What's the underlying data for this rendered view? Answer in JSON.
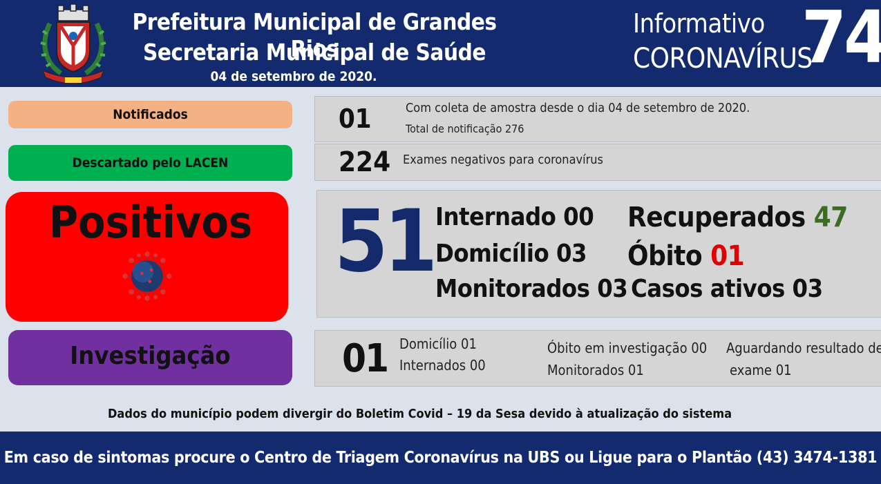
{
  "header": {
    "title_line1": "Prefeitura Municipal de Grandes Rios",
    "title_line2": "Secretaria Municipal de Saúde",
    "date": "04 de setembro  de 2020.",
    "info_line1": "Informativo",
    "info_line2": "CORONAVÍRUS",
    "bulletin_number": "74"
  },
  "colors": {
    "navy": "#132a6e",
    "notificados": "#f4b183",
    "descartado": "#00b050",
    "positivos": "#ff0000",
    "investigacao": "#7030a0",
    "recuperados_value": "#3b6e22",
    "obito_value": "#e00000",
    "big_number": "#152a6a"
  },
  "notificados": {
    "label": "Notificados",
    "value": "01",
    "line1": "Com coleta  de amostra  desde o dia 04 de setembro de 2020.",
    "line2": "Total de notificação  276"
  },
  "descartado": {
    "label": "Descartado  pelo LACEN",
    "value": "224",
    "text": "Exames negativos  para coronavírus"
  },
  "positivos": {
    "label": "Positivos",
    "icon": "coronavirus-icon",
    "value": "51",
    "internado": "Internado 00",
    "domicilio": "Domicílio 03",
    "monitorados": "Monitorados 03",
    "recuperados_label": "Recuperados",
    "recuperados_value": "47",
    "obito_label": "Óbito",
    "obito_value": "01",
    "casos_ativos": "Casos ativos 03"
  },
  "investigacao": {
    "label": "Investigação",
    "value": "01",
    "domicilio": "Domicílio 01",
    "internados": "Internados 00",
    "obito_investigacao": "Óbito  em investigação  00",
    "monitorados": "Monitorados  01",
    "aguardando_line1": "Aguardando resultado de",
    "aguardando_line2": "exame 01"
  },
  "disclaimer": "Dados do município  podem  divergir do Boletim  Covid – 19 da Sesa devido à atualização  do sistema",
  "footer": {
    "text": "Em caso de sintomas  procure  o Centro de Triagem  Coronavírus  na UBS ou Ligue  para o Plantão  (43) 3474-1381"
  }
}
